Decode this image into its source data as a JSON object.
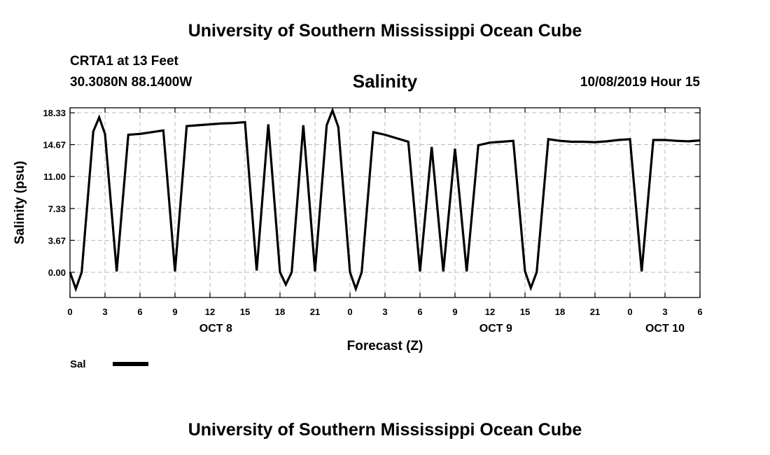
{
  "header": {
    "title": "University of Southern Mississippi Ocean Cube",
    "station": "CRTA1 at 13 Feet",
    "coords": "30.3080N 88.1400W",
    "parameter": "Salinity",
    "datetime": "10/08/2019 Hour 15"
  },
  "footer": {
    "title": "University of Southern Mississippi Ocean Cube"
  },
  "chart_data": {
    "type": "line",
    "title": "Salinity",
    "xlabel": "Forecast (Z)",
    "ylabel": "Salinity (psu)",
    "xlim": [
      0,
      54
    ],
    "ylim": [
      -2.9,
      18.9
    ],
    "grid": true,
    "legend_position": "bottom-left",
    "line_color": "#000000",
    "y_ticks": [
      {
        "value": 0.0,
        "label": "0.00"
      },
      {
        "value": 3.67,
        "label": "3.67"
      },
      {
        "value": 7.33,
        "label": "7.33"
      },
      {
        "value": 11.0,
        "label": "11.00"
      },
      {
        "value": 14.67,
        "label": "14.67"
      },
      {
        "value": 18.33,
        "label": "18.33"
      }
    ],
    "x_ticks": [
      {
        "value": 0,
        "label": "0"
      },
      {
        "value": 3,
        "label": "3"
      },
      {
        "value": 6,
        "label": "6"
      },
      {
        "value": 9,
        "label": "9"
      },
      {
        "value": 12,
        "label": "12"
      },
      {
        "value": 15,
        "label": "15"
      },
      {
        "value": 18,
        "label": "18"
      },
      {
        "value": 21,
        "label": "21"
      },
      {
        "value": 24,
        "label": "0"
      },
      {
        "value": 27,
        "label": "3"
      },
      {
        "value": 30,
        "label": "6"
      },
      {
        "value": 33,
        "label": "9"
      },
      {
        "value": 36,
        "label": "12"
      },
      {
        "value": 39,
        "label": "15"
      },
      {
        "value": 42,
        "label": "18"
      },
      {
        "value": 45,
        "label": "21"
      },
      {
        "value": 48,
        "label": "0"
      },
      {
        "value": 51,
        "label": "3"
      },
      {
        "value": 54,
        "label": "6"
      }
    ],
    "day_labels": [
      {
        "value": 12.5,
        "label": "OCT 8"
      },
      {
        "value": 36.5,
        "label": "OCT 9"
      },
      {
        "value": 51,
        "label": "OCT 10"
      }
    ],
    "series": [
      {
        "name": "Sal",
        "x": [
          0,
          0.5,
          1,
          2,
          2.5,
          3,
          4,
          5,
          6,
          7,
          8,
          9,
          10,
          11,
          12,
          13,
          14,
          15,
          16,
          17,
          18,
          18.5,
          19,
          20,
          21,
          22,
          22.5,
          23,
          24,
          24.5,
          25,
          26,
          27,
          28,
          29,
          30,
          31,
          32,
          33,
          34,
          35,
          36,
          37,
          38,
          39,
          39.5,
          40,
          41,
          42,
          43,
          44,
          45,
          46,
          47,
          48,
          49,
          50,
          51,
          52,
          53,
          54
        ],
        "y": [
          0.0,
          -1.9,
          0.0,
          16.2,
          17.8,
          15.9,
          0.1,
          15.8,
          15.9,
          16.1,
          16.3,
          0.1,
          16.8,
          16.9,
          17.0,
          17.1,
          17.15,
          17.25,
          0.2,
          17.0,
          0.0,
          -1.4,
          0.0,
          16.9,
          0.1,
          16.9,
          18.6,
          16.7,
          0.0,
          -1.9,
          0.0,
          16.1,
          15.8,
          15.4,
          15.0,
          0.1,
          14.4,
          0.1,
          14.2,
          0.1,
          14.6,
          14.9,
          15.0,
          15.1,
          0.1,
          -1.8,
          0.0,
          15.3,
          15.1,
          15.0,
          15.0,
          14.95,
          15.05,
          15.2,
          15.3,
          0.1,
          15.2,
          15.2,
          15.1,
          15.05,
          15.15
        ]
      }
    ]
  }
}
